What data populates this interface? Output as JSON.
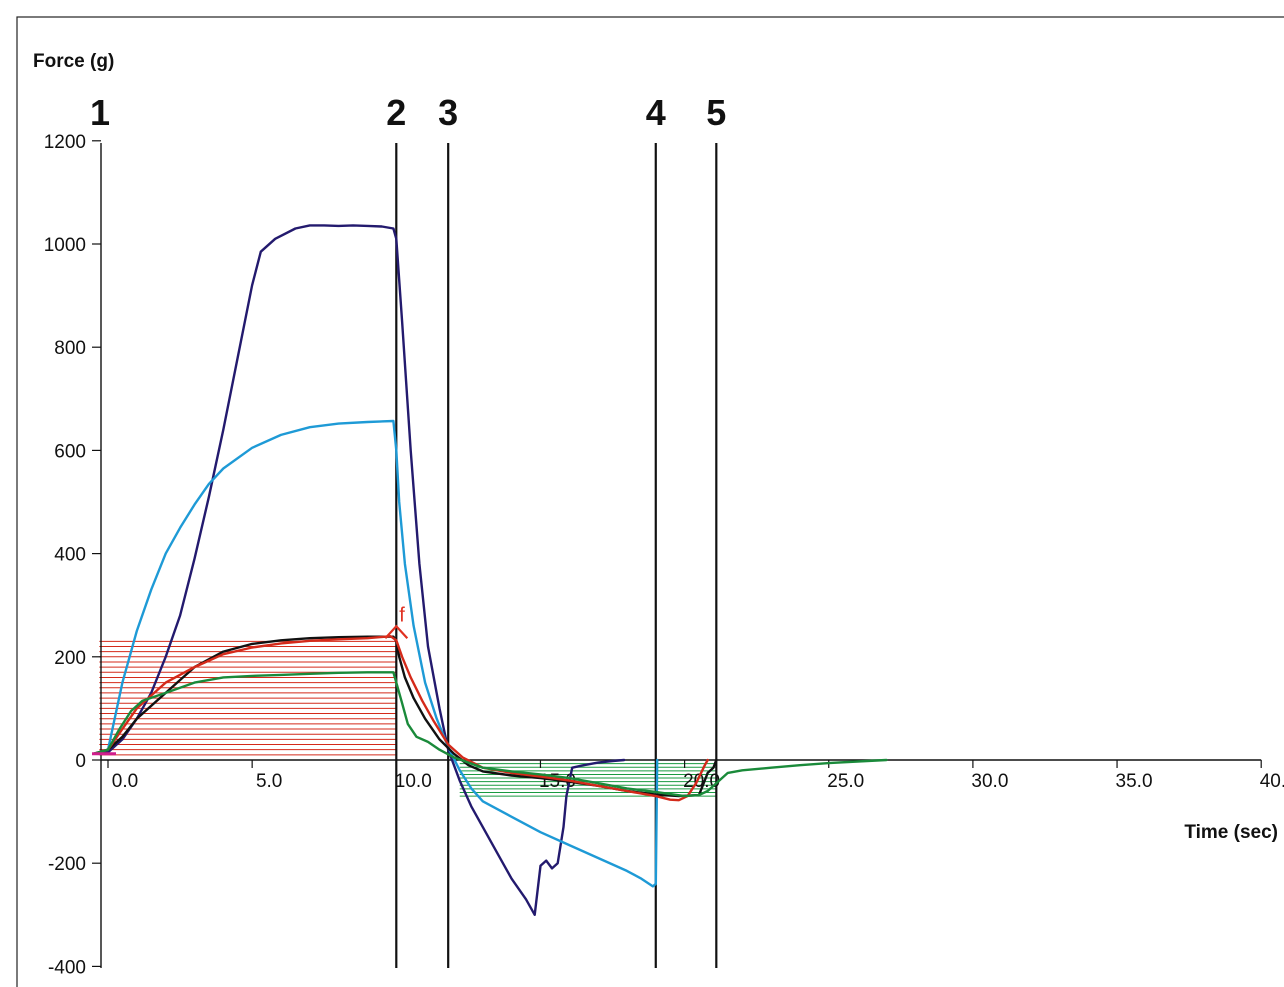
{
  "chart_data": {
    "type": "line",
    "xlabel": "Time (sec)",
    "ylabel": "Force (g)",
    "xlim": [
      -1.0,
      40.0
    ],
    "ylim": [
      -400,
      1200
    ],
    "x_ticks": [
      0.0,
      5.0,
      10.0,
      15.0,
      20.0,
      25.0,
      30.0,
      35.0,
      40.0
    ],
    "x_tick_labels": [
      "0.0",
      "5.0",
      "10.0",
      "15.0",
      "20.0",
      "25.0",
      "30.0",
      "35.0",
      "40.0"
    ],
    "y_ticks": [
      -400,
      -200,
      0,
      200,
      400,
      600,
      800,
      1000,
      1200
    ],
    "y_tick_labels": [
      "-400",
      "-200",
      "0",
      "200",
      "400",
      "600",
      "800",
      "1000",
      "1200"
    ],
    "event_markers": [
      {
        "label": "1",
        "x": 0.0,
        "line": false
      },
      {
        "label": "2",
        "x": 10.0,
        "line": true
      },
      {
        "label": "3",
        "x": 11.8,
        "line": true
      },
      {
        "label": "4",
        "x": 19.0,
        "line": true
      },
      {
        "label": "5",
        "x": 21.1,
        "line": true
      }
    ],
    "annotation": {
      "text": "f",
      "x": 10.0,
      "y": 265,
      "color": "#e03020"
    },
    "hatched_areas": [
      {
        "color": "#d42a1a",
        "from_x": -0.3,
        "to_x": 10.0,
        "from_y": 0,
        "to_y": 235,
        "spacing": 10
      },
      {
        "color": "#1a9a40",
        "from_x": 12.2,
        "to_x": 21.1,
        "from_y": -70,
        "to_y": 0,
        "spacing": 7
      }
    ],
    "series": [
      {
        "color": "#231a6e",
        "points": [
          [
            -0.5,
            12
          ],
          [
            0,
            15
          ],
          [
            0.5,
            40
          ],
          [
            1,
            80
          ],
          [
            1.5,
            130
          ],
          [
            2,
            200
          ],
          [
            2.5,
            280
          ],
          [
            3,
            390
          ],
          [
            3.5,
            510
          ],
          [
            4,
            640
          ],
          [
            4.5,
            780
          ],
          [
            5,
            920
          ],
          [
            5.3,
            985
          ],
          [
            5.8,
            1010
          ],
          [
            6.5,
            1030
          ],
          [
            7,
            1036
          ],
          [
            7.5,
            1036
          ],
          [
            8,
            1035
          ],
          [
            8.5,
            1036
          ],
          [
            9,
            1035
          ],
          [
            9.5,
            1034
          ],
          [
            9.9,
            1030
          ],
          [
            10,
            1010
          ],
          [
            10.2,
            850
          ],
          [
            10.5,
            600
          ],
          [
            10.8,
            380
          ],
          [
            11.1,
            220
          ],
          [
            11.5,
            100
          ],
          [
            11.8,
            20
          ],
          [
            12.2,
            -40
          ],
          [
            12.6,
            -90
          ],
          [
            13,
            -130
          ],
          [
            13.5,
            -180
          ],
          [
            14,
            -230
          ],
          [
            14.5,
            -270
          ],
          [
            14.8,
            -300
          ],
          [
            15,
            -205
          ],
          [
            15.2,
            -195
          ],
          [
            15.4,
            -210
          ],
          [
            15.6,
            -200
          ],
          [
            15.8,
            -130
          ],
          [
            15.9,
            -70
          ],
          [
            16.1,
            -15
          ],
          [
            16.5,
            -10
          ],
          [
            17,
            -5
          ],
          [
            17.5,
            -2
          ],
          [
            17.9,
            0
          ]
        ]
      },
      {
        "color": "#1e9ad6",
        "points": [
          [
            -0.5,
            12
          ],
          [
            0,
            20
          ],
          [
            0.5,
            150
          ],
          [
            1,
            250
          ],
          [
            1.5,
            330
          ],
          [
            2,
            400
          ],
          [
            2.5,
            450
          ],
          [
            3,
            495
          ],
          [
            3.5,
            535
          ],
          [
            4,
            565
          ],
          [
            5,
            605
          ],
          [
            6,
            630
          ],
          [
            7,
            645
          ],
          [
            8,
            652
          ],
          [
            9,
            655
          ],
          [
            9.9,
            657
          ],
          [
            10,
            600
          ],
          [
            10.1,
            500
          ],
          [
            10.3,
            380
          ],
          [
            10.6,
            260
          ],
          [
            11,
            150
          ],
          [
            11.4,
            80
          ],
          [
            11.8,
            25
          ],
          [
            12.2,
            -20
          ],
          [
            12.6,
            -55
          ],
          [
            13,
            -80
          ],
          [
            14,
            -110
          ],
          [
            15,
            -140
          ],
          [
            16,
            -165
          ],
          [
            17,
            -190
          ],
          [
            18,
            -215
          ],
          [
            18.5,
            -230
          ],
          [
            18.9,
            -245
          ],
          [
            19,
            -240
          ],
          [
            19.05,
            0
          ]
        ]
      },
      {
        "color": "#111111",
        "points": [
          [
            -0.5,
            12
          ],
          [
            0,
            20
          ],
          [
            0.5,
            45
          ],
          [
            1,
            80
          ],
          [
            2,
            130
          ],
          [
            3,
            180
          ],
          [
            4,
            210
          ],
          [
            5,
            225
          ],
          [
            6,
            232
          ],
          [
            7,
            236
          ],
          [
            8,
            238
          ],
          [
            9,
            239
          ],
          [
            9.9,
            239
          ],
          [
            10,
            230
          ],
          [
            10.1,
            200
          ],
          [
            10.3,
            160
          ],
          [
            10.6,
            120
          ],
          [
            11,
            80
          ],
          [
            11.5,
            40
          ],
          [
            12,
            12
          ],
          [
            12.5,
            -10
          ],
          [
            13,
            -22
          ],
          [
            14,
            -30
          ],
          [
            15,
            -35
          ],
          [
            16,
            -42
          ],
          [
            17,
            -50
          ],
          [
            18,
            -60
          ],
          [
            19,
            -67
          ],
          [
            19.8,
            -70
          ],
          [
            20.5,
            -68
          ],
          [
            20.8,
            -25
          ],
          [
            21,
            -15
          ],
          [
            21.1,
            0
          ]
        ]
      },
      {
        "color": "#d42a1a",
        "points": [
          [
            -0.5,
            12
          ],
          [
            0,
            20
          ],
          [
            0.5,
            60
          ],
          [
            1,
            100
          ],
          [
            2,
            150
          ],
          [
            3,
            180
          ],
          [
            4,
            205
          ],
          [
            5,
            218
          ],
          [
            6,
            226
          ],
          [
            7,
            231
          ],
          [
            8,
            234
          ],
          [
            9,
            236
          ],
          [
            9.8,
            240
          ],
          [
            10,
            232
          ],
          [
            10.2,
            200
          ],
          [
            10.5,
            160
          ],
          [
            10.9,
            115
          ],
          [
            11.3,
            75
          ],
          [
            11.8,
            30
          ],
          [
            12.3,
            5
          ],
          [
            13,
            -15
          ],
          [
            14,
            -25
          ],
          [
            15,
            -32
          ],
          [
            16,
            -40
          ],
          [
            17,
            -50
          ],
          [
            18,
            -60
          ],
          [
            19,
            -70
          ],
          [
            19.5,
            -77
          ],
          [
            19.8,
            -78
          ],
          [
            20.1,
            -70
          ],
          [
            20.4,
            -45
          ],
          [
            20.7,
            -10
          ],
          [
            20.8,
            0
          ]
        ]
      },
      {
        "color": "#1a8a3a",
        "points": [
          [
            -0.5,
            12
          ],
          [
            0,
            20
          ],
          [
            0.4,
            60
          ],
          [
            0.8,
            95
          ],
          [
            1.2,
            115
          ],
          [
            2,
            130
          ],
          [
            3,
            150
          ],
          [
            4,
            160
          ],
          [
            5,
            163
          ],
          [
            6,
            165
          ],
          [
            7,
            167
          ],
          [
            8,
            169
          ],
          [
            9,
            170
          ],
          [
            9.9,
            170
          ],
          [
            10,
            150
          ],
          [
            10.2,
            110
          ],
          [
            10.4,
            70
          ],
          [
            10.7,
            45
          ],
          [
            11.1,
            35
          ],
          [
            11.5,
            20
          ],
          [
            12,
            5
          ],
          [
            12.5,
            -5
          ],
          [
            13,
            -15
          ],
          [
            14,
            -22
          ],
          [
            15,
            -28
          ],
          [
            16,
            -35
          ],
          [
            17,
            -45
          ],
          [
            18,
            -55
          ],
          [
            19,
            -62
          ],
          [
            19.5,
            -66
          ],
          [
            20,
            -70
          ],
          [
            20.5,
            -68
          ],
          [
            20.8,
            -60
          ],
          [
            21.2,
            -40
          ],
          [
            21.5,
            -25
          ],
          [
            22,
            -20
          ],
          [
            23,
            -15
          ],
          [
            24,
            -10
          ],
          [
            25,
            -6
          ],
          [
            26,
            -3
          ],
          [
            27,
            0
          ]
        ]
      }
    ]
  }
}
